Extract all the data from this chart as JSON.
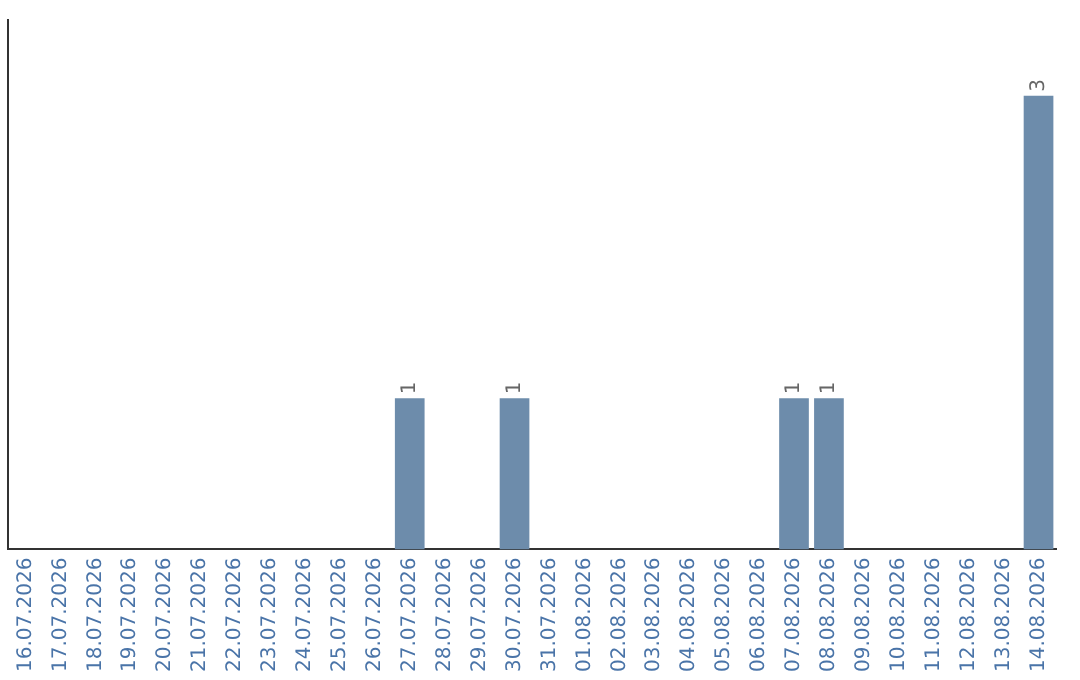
{
  "chart_data": {
    "type": "bar",
    "categories": [
      "16.07.2026",
      "17.07.2026",
      "18.07.2026",
      "19.07.2026",
      "20.07.2026",
      "21.07.2026",
      "22.07.2026",
      "23.07.2026",
      "24.07.2026",
      "25.07.2026",
      "26.07.2026",
      "27.07.2026",
      "28.07.2026",
      "29.07.2026",
      "30.07.2026",
      "31.07.2026",
      "01.08.2026",
      "02.08.2026",
      "03.08.2026",
      "04.08.2026",
      "05.08.2026",
      "06.08.2026",
      "07.08.2026",
      "08.08.2026",
      "09.08.2026",
      "10.08.2026",
      "11.08.2026",
      "12.08.2026",
      "13.08.2026",
      "14.08.2026"
    ],
    "values": [
      0,
      0,
      0,
      0,
      0,
      0,
      0,
      0,
      0,
      0,
      0,
      1,
      0,
      0,
      1,
      0,
      0,
      0,
      0,
      0,
      0,
      0,
      1,
      1,
      0,
      0,
      0,
      0,
      0,
      3
    ],
    "value_labels": [
      null,
      null,
      null,
      null,
      null,
      null,
      null,
      null,
      null,
      null,
      null,
      "1",
      null,
      null,
      "1",
      null,
      null,
      null,
      null,
      null,
      null,
      null,
      "1",
      "1",
      null,
      null,
      null,
      null,
      null,
      "3"
    ],
    "color": "#6d8cab",
    "tick_labels": "x",
    "grid": false,
    "legend": false
  }
}
